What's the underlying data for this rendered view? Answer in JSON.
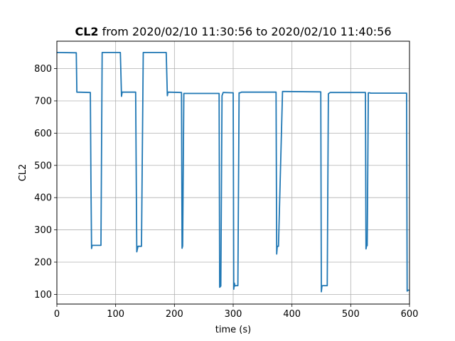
{
  "chart_data": {
    "type": "line",
    "title_bold": "CL2",
    "title_rest": " from 2020/02/10 11:30:56 to 2020/02/10 11:40:56",
    "xlabel": "time (s)",
    "ylabel": "CL2",
    "xlim": [
      0,
      600
    ],
    "ylim": [
      70,
      885
    ],
    "xticks": [
      0,
      100,
      200,
      300,
      400,
      500,
      600
    ],
    "yticks": [
      100,
      200,
      300,
      400,
      500,
      600,
      700,
      800
    ],
    "grid": true,
    "line_color": "#1f77b4",
    "series": [
      {
        "x": [
          0,
          33,
          34,
          57,
          58,
          59,
          60,
          75,
          77,
          108,
          110,
          111,
          112,
          134,
          136,
          138,
          144,
          147,
          186,
          188,
          189,
          212,
          213,
          214,
          216,
          276,
          277,
          279,
          281,
          283,
          284,
          300,
          301,
          302,
          303,
          304,
          308,
          310,
          312,
          314,
          373,
          374,
          375,
          376,
          377,
          384,
          386,
          449,
          450,
          451,
          452,
          455,
          460,
          462,
          465,
          525,
          526,
          527,
          528,
          530,
          532,
          534,
          595,
          596,
          597,
          600
        ],
        "y": [
          850,
          849,
          727,
          726,
          455,
          242,
          252,
          252,
          850,
          850,
          714,
          727,
          727,
          727,
          232,
          249,
          249,
          850,
          850,
          716,
          727,
          726,
          243,
          250,
          723,
          723,
          122,
          126,
          716,
          726,
          726,
          725,
          116,
          135,
          126,
          127,
          127,
          725,
          725,
          727,
          727,
          225,
          249,
          249,
          249,
          729,
          729,
          728,
          108,
          125,
          127,
          127,
          127,
          722,
          726,
          726,
          241,
          251,
          251,
          725,
          725,
          724,
          724,
          110,
          113,
          113
        ]
      }
    ]
  }
}
